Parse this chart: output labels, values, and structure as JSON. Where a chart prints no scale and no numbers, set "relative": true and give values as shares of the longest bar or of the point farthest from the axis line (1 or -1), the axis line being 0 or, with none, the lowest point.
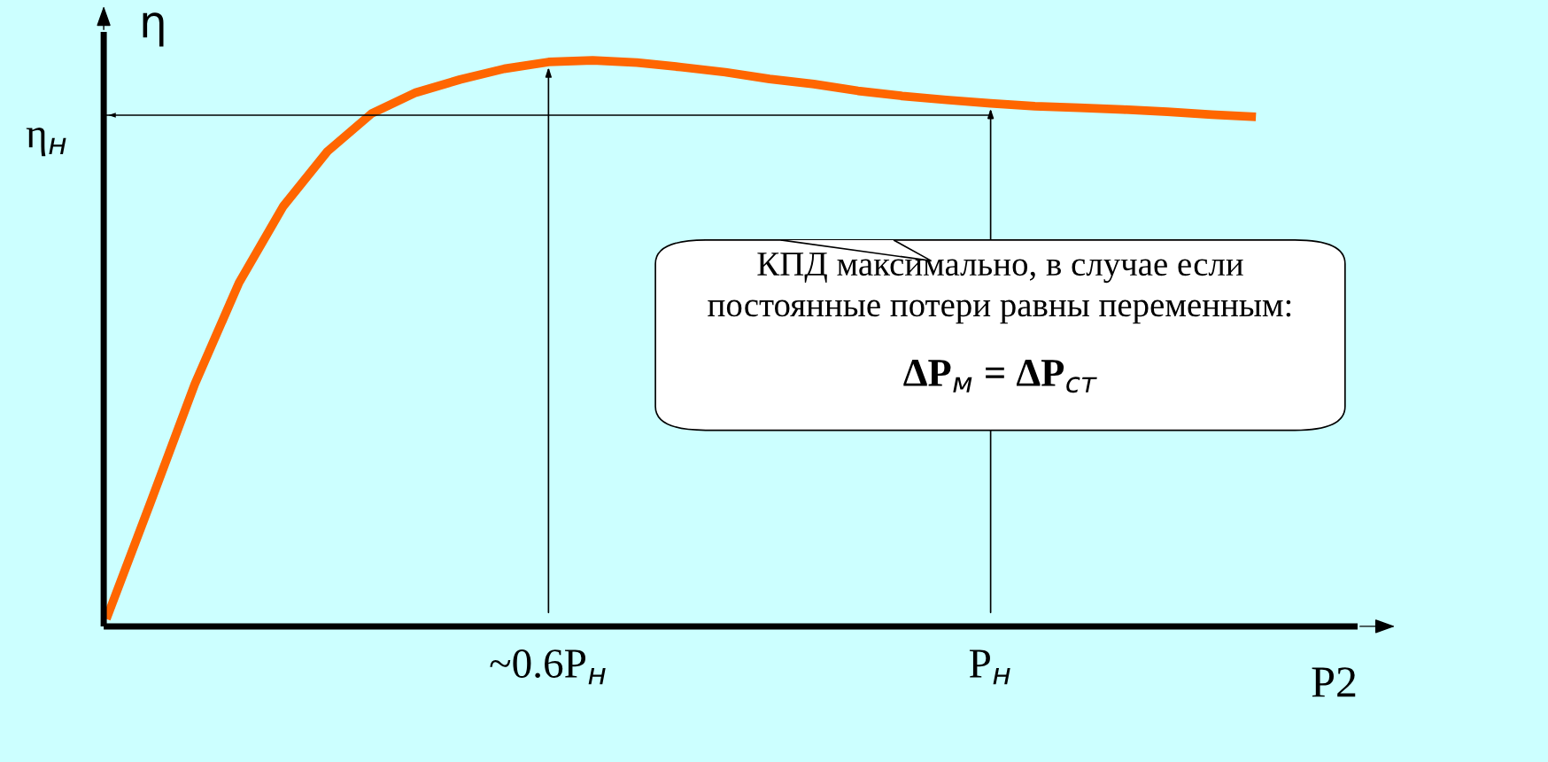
{
  "chart_data": {
    "type": "line",
    "relative": true,
    "xlabel": "P2",
    "ylabel": "η",
    "categories": [
      null,
      null,
      null,
      null,
      null,
      null,
      null,
      null,
      null,
      null,
      "~0.6P$_{н}$",
      null,
      null,
      null,
      null,
      null,
      null,
      null,
      null,
      null,
      "P$_{н}$",
      null,
      null,
      null,
      null,
      null,
      null
    ],
    "series": [
      {
        "color": "#ff6600",
        "values": [
          0.013,
          0.219,
          0.428,
          0.607,
          0.742,
          0.839,
          0.906,
          0.943,
          0.966,
          0.985,
          0.997,
          1.0,
          0.996,
          0.988,
          0.979,
          0.967,
          0.958,
          0.946,
          0.937,
          0.93,
          0.924,
          0.919,
          0.916,
          0.913,
          0.909,
          0.904,
          0.9
        ]
      }
    ],
    "ref_lines": [
      {
        "axis": "y",
        "value": 0.903,
        "label": "η$_{н}$",
        "color": "#000000"
      }
    ],
    "annotations": [
      "КПД максимально, в случае если\nпостоянные потери равны переменным:",
      "ΔP$_{м}$ = ΔP$_{ст}$"
    ],
    "marker": "none",
    "line_style": "solid"
  }
}
